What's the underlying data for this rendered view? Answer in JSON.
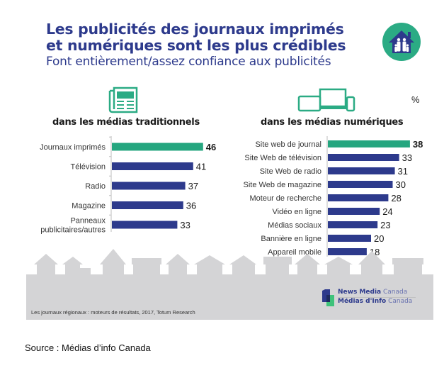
{
  "header": {
    "title_line1": "Les publicités des journaux imprimés",
    "title_line2": "et numériques sont les plus crédibles",
    "subtitle": "Font entièrement/assez confiance aux publicités",
    "unit_label": "%"
  },
  "colors": {
    "title": "#2d3a8c",
    "highlight_bar": "#25a67f",
    "bar": "#2d3a8c",
    "band": "#d4d4d6",
    "icon_green": "#2bab84"
  },
  "chart_data": [
    {
      "type": "bar",
      "orientation": "horizontal",
      "title": "dans les médias traditionnels",
      "categories": [
        "Journaux imprimés",
        "Télévision",
        "Radio",
        "Magazine",
        "Panneaux publicitaires/autres"
      ],
      "category_lines": [
        [
          "Journaux imprimés"
        ],
        [
          "Télévision"
        ],
        [
          "Radio"
        ],
        [
          "Magazine"
        ],
        [
          "Panneaux",
          "publicitaires/autres"
        ]
      ],
      "values": [
        46,
        41,
        37,
        36,
        33
      ],
      "highlight_index": 0,
      "unit": "%",
      "xlabel": "",
      "ylabel": "",
      "xlim": [
        0,
        50
      ],
      "grid": false
    },
    {
      "type": "bar",
      "orientation": "horizontal",
      "title": "dans les médias numériques",
      "categories": [
        "Site web de journal",
        "Site Web de télévision",
        "Site Web de radio",
        "Site Web de magazine",
        "Moteur de recherche",
        "Vidéo en ligne",
        "Médias sociaux",
        "Bannière en ligne",
        "Appareil mobile"
      ],
      "values": [
        38,
        33,
        31,
        30,
        28,
        24,
        23,
        20,
        18
      ],
      "highlight_index": 0,
      "unit": "%",
      "xlabel": "",
      "ylabel": "",
      "xlim": [
        0,
        40
      ],
      "grid": false
    }
  ],
  "footer": {
    "footnote": "Les journaux régionaux : moteurs de résultats, 2017, Totum Research",
    "logo_line1_bold": "News Media",
    "logo_line1_light": "Canada",
    "logo_line2_bold": "Médias d'Info",
    "logo_line2_light": "Canada",
    "source": "Source : Médias d’info Canada"
  },
  "icons": {
    "house_badge": "house-family-icon",
    "newspaper": "newspaper-icon",
    "devices": "devices-icon",
    "logo": "news-media-canada-logo"
  }
}
